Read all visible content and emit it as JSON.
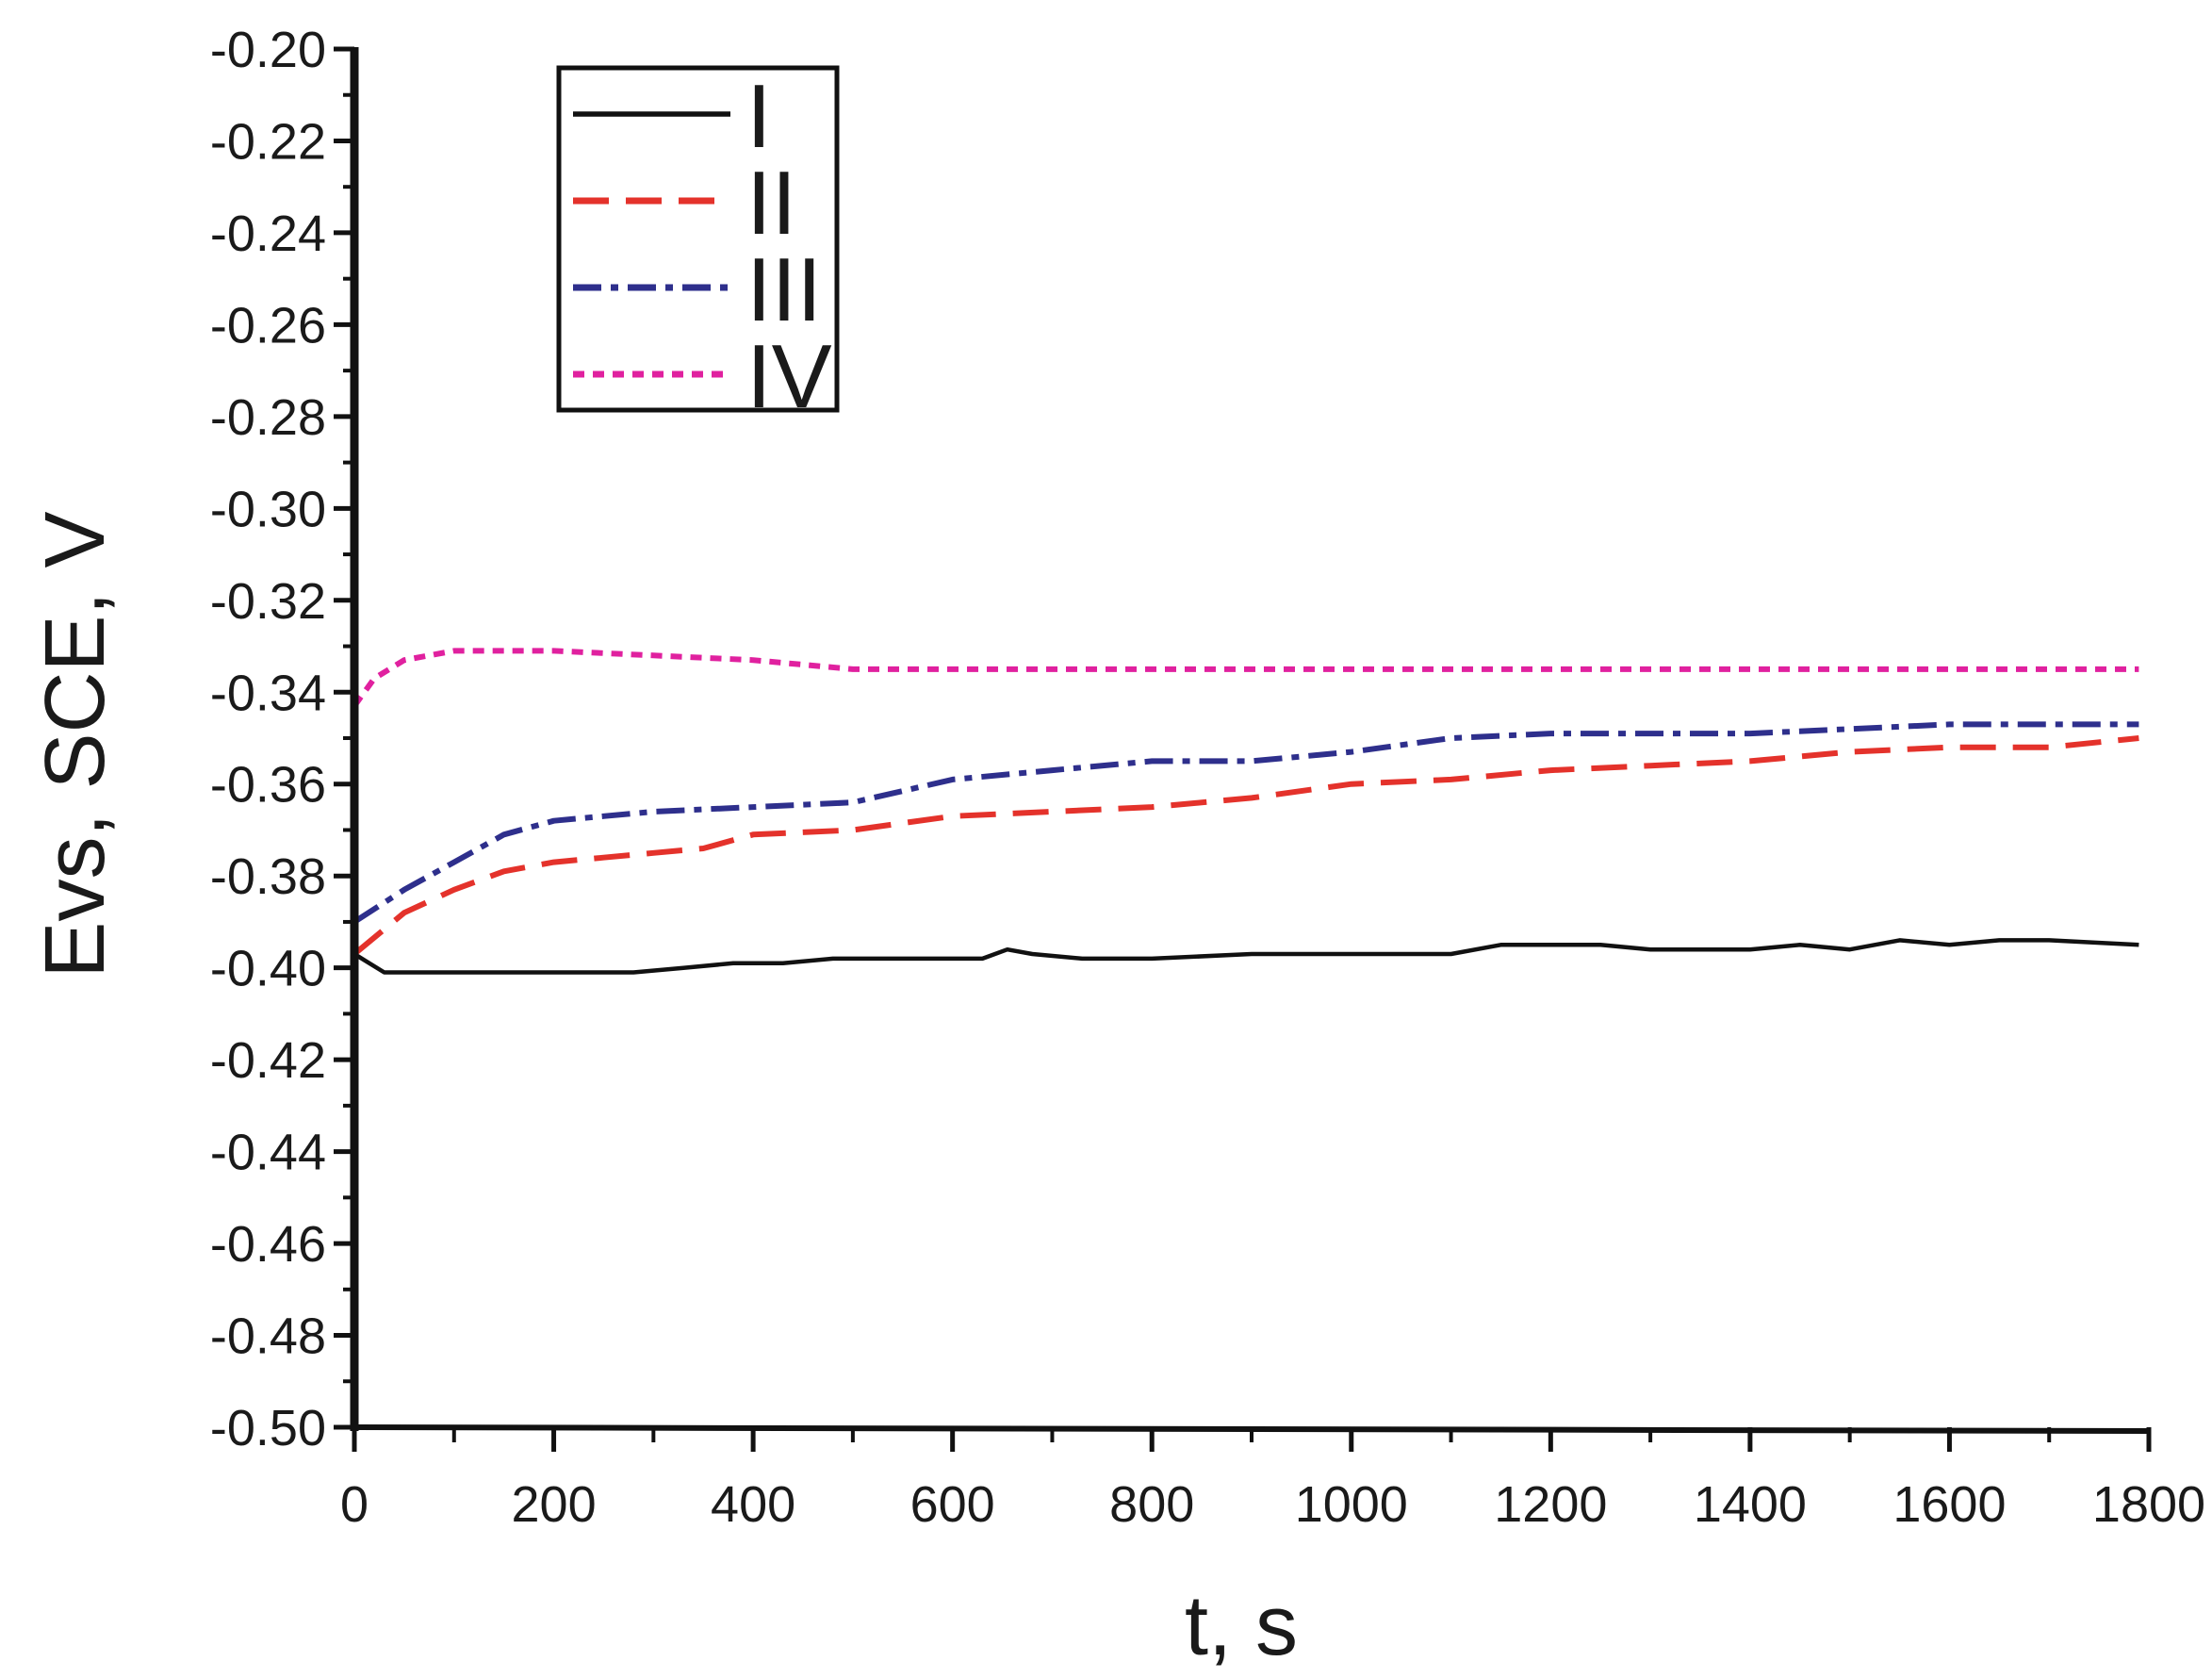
{
  "chart_data": {
    "type": "line",
    "xlabel": "t, s",
    "ylabel": "Evs, SCE, V",
    "xlim": [
      0,
      1800
    ],
    "ylim": [
      -0.5,
      -0.2
    ],
    "x_ticks": [
      0,
      200,
      400,
      600,
      800,
      1000,
      1200,
      1400,
      1600,
      1800
    ],
    "x_tick_labels": [
      "0",
      "200",
      "400",
      "600",
      "800",
      "1000",
      "1200",
      "1400",
      "1600",
      "1800"
    ],
    "y_ticks": [
      -0.5,
      -0.48,
      -0.46,
      -0.44,
      -0.42,
      -0.4,
      -0.38,
      -0.36,
      -0.34,
      -0.32,
      -0.3,
      -0.28,
      -0.26,
      -0.24,
      -0.22,
      -0.2
    ],
    "y_tick_labels": [
      "-0.50",
      "-0.48",
      "-0.46",
      "-0.44",
      "-0.42",
      "-0.40",
      "-0.38",
      "-0.36",
      "-0.34",
      "-0.32",
      "-0.30",
      "-0.28",
      "-0.26",
      "-0.24",
      "-0.22",
      "-0.20"
    ],
    "grid": false,
    "legend_position": "top-left",
    "series": [
      {
        "name": "I",
        "color": "#111111",
        "dash": "solid",
        "points": [
          [
            0,
            -0.397
          ],
          [
            30,
            -0.401
          ],
          [
            100,
            -0.401
          ],
          [
            200,
            -0.401
          ],
          [
            280,
            -0.401
          ],
          [
            330,
            -0.4
          ],
          [
            380,
            -0.399
          ],
          [
            430,
            -0.399
          ],
          [
            480,
            -0.398
          ],
          [
            550,
            -0.398
          ],
          [
            630,
            -0.398
          ],
          [
            655,
            -0.396
          ],
          [
            680,
            -0.397
          ],
          [
            730,
            -0.398
          ],
          [
            800,
            -0.398
          ],
          [
            900,
            -0.397
          ],
          [
            1000,
            -0.397
          ],
          [
            1100,
            -0.397
          ],
          [
            1150,
            -0.395
          ],
          [
            1250,
            -0.395
          ],
          [
            1300,
            -0.396
          ],
          [
            1350,
            -0.396
          ],
          [
            1400,
            -0.396
          ],
          [
            1450,
            -0.395
          ],
          [
            1500,
            -0.396
          ],
          [
            1550,
            -0.394
          ],
          [
            1600,
            -0.395
          ],
          [
            1650,
            -0.394
          ],
          [
            1700,
            -0.394
          ],
          [
            1790,
            -0.395
          ]
        ]
      },
      {
        "name": "II",
        "color": "#e4322b",
        "dash": "dashed",
        "points": [
          [
            0,
            -0.397
          ],
          [
            50,
            -0.388
          ],
          [
            100,
            -0.383
          ],
          [
            150,
            -0.379
          ],
          [
            200,
            -0.377
          ],
          [
            250,
            -0.376
          ],
          [
            300,
            -0.375
          ],
          [
            350,
            -0.374
          ],
          [
            400,
            -0.371
          ],
          [
            500,
            -0.37
          ],
          [
            600,
            -0.367
          ],
          [
            700,
            -0.366
          ],
          [
            800,
            -0.365
          ],
          [
            900,
            -0.363
          ],
          [
            1000,
            -0.36
          ],
          [
            1100,
            -0.359
          ],
          [
            1200,
            -0.357
          ],
          [
            1300,
            -0.356
          ],
          [
            1400,
            -0.355
          ],
          [
            1500,
            -0.353
          ],
          [
            1600,
            -0.352
          ],
          [
            1700,
            -0.352
          ],
          [
            1790,
            -0.35
          ]
        ]
      },
      {
        "name": "III",
        "color": "#2e2f8c",
        "dash": "dash-dot",
        "points": [
          [
            0,
            -0.39
          ],
          [
            50,
            -0.383
          ],
          [
            100,
            -0.377
          ],
          [
            150,
            -0.371
          ],
          [
            200,
            -0.368
          ],
          [
            250,
            -0.367
          ],
          [
            300,
            -0.366
          ],
          [
            400,
            -0.365
          ],
          [
            500,
            -0.364
          ],
          [
            600,
            -0.359
          ],
          [
            700,
            -0.357
          ],
          [
            800,
            -0.355
          ],
          [
            900,
            -0.355
          ],
          [
            1000,
            -0.353
          ],
          [
            1100,
            -0.35
          ],
          [
            1200,
            -0.349
          ],
          [
            1300,
            -0.349
          ],
          [
            1400,
            -0.349
          ],
          [
            1500,
            -0.348
          ],
          [
            1600,
            -0.347
          ],
          [
            1700,
            -0.347
          ],
          [
            1790,
            -0.347
          ]
        ]
      },
      {
        "name": "IV",
        "color": "#e0219f",
        "dash": "dotted",
        "points": [
          [
            0,
            -0.343
          ],
          [
            20,
            -0.337
          ],
          [
            50,
            -0.333
          ],
          [
            100,
            -0.331
          ],
          [
            150,
            -0.331
          ],
          [
            200,
            -0.331
          ],
          [
            300,
            -0.332
          ],
          [
            400,
            -0.333
          ],
          [
            500,
            -0.335
          ],
          [
            600,
            -0.335
          ],
          [
            700,
            -0.335
          ],
          [
            800,
            -0.335
          ],
          [
            900,
            -0.335
          ],
          [
            1000,
            -0.335
          ],
          [
            1100,
            -0.335
          ],
          [
            1200,
            -0.335
          ],
          [
            1300,
            -0.335
          ],
          [
            1400,
            -0.335
          ],
          [
            1500,
            -0.335
          ],
          [
            1600,
            -0.335
          ],
          [
            1700,
            -0.335
          ],
          [
            1790,
            -0.335
          ]
        ]
      }
    ]
  }
}
